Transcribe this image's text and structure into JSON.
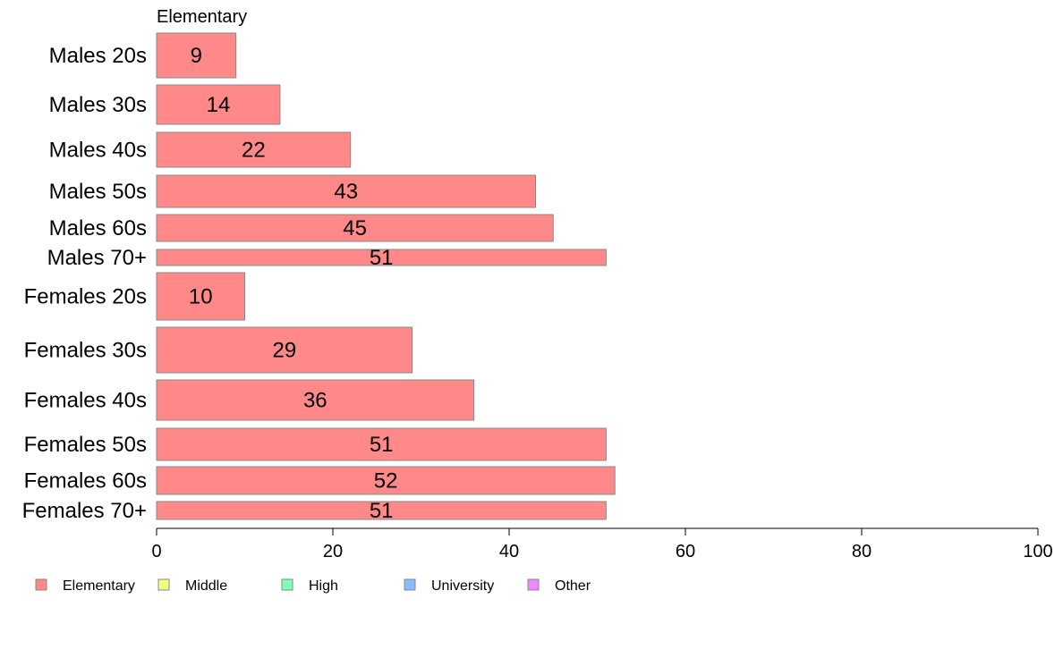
{
  "chart_data": {
    "type": "bar",
    "orientation": "horizontal",
    "panel_title": "Elementary",
    "categories": [
      "Males 20s",
      "Males 30s",
      "Males 40s",
      "Males 50s",
      "Males 60s",
      "Males 70+",
      "Females 20s",
      "Females 30s",
      "Females 40s",
      "Females 50s",
      "Females 60s",
      "Females 70+"
    ],
    "series": [
      {
        "name": "Elementary",
        "color": "#ff8888",
        "values": [
          9,
          14,
          22,
          43,
          45,
          51,
          10,
          29,
          36,
          51,
          52,
          51
        ]
      }
    ],
    "xlim": [
      0,
      100
    ],
    "xticks": [
      0,
      20,
      40,
      60,
      80,
      100
    ],
    "xlabel": "",
    "ylabel": "",
    "grid": false,
    "legend_position": "bottom-left",
    "legend": [
      {
        "label": "Elementary",
        "color": "#ff8888"
      },
      {
        "label": "Middle",
        "color": "#f0ff80"
      },
      {
        "label": "High",
        "color": "#80ffbb"
      },
      {
        "label": "University",
        "color": "#88bbff"
      },
      {
        "label": "Other",
        "color": "#ee88ff"
      }
    ]
  }
}
